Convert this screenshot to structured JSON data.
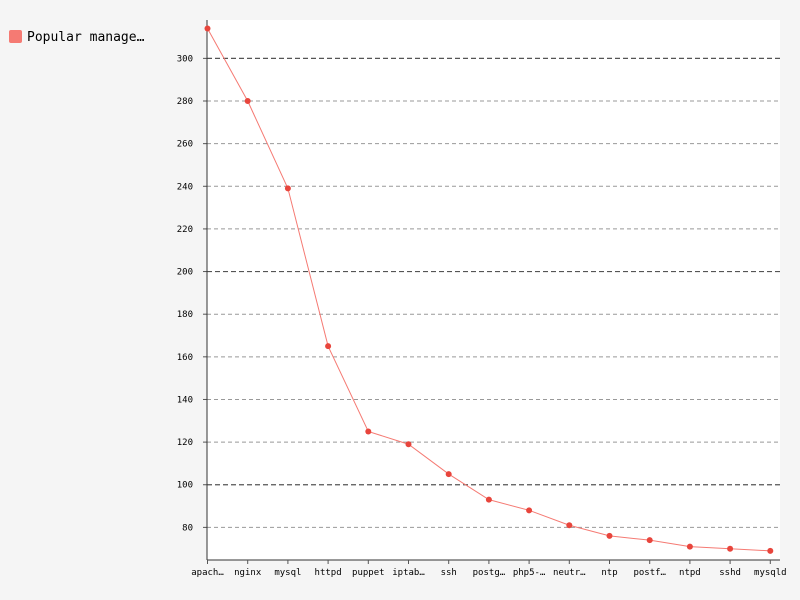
{
  "legend": {
    "entries": [
      {
        "label": "Popular manage…",
        "color": "#f57a73"
      }
    ]
  },
  "chart_data": {
    "type": "line",
    "categories": [
      "apach…",
      "nginx",
      "mysql",
      "httpd",
      "puppet",
      "iptab…",
      "ssh",
      "postg…",
      "php5-…",
      "neutr…",
      "ntp",
      "postf…",
      "ntpd",
      "sshd",
      "mysqld"
    ],
    "series": [
      {
        "name": "Popular manage…",
        "values": [
          314,
          280,
          239,
          165,
          125,
          119,
          105,
          93,
          88,
          81,
          76,
          74,
          71,
          70,
          69
        ],
        "color": "#e8453c",
        "line_color": "#f57a73"
      }
    ],
    "y_ticks": [
      80,
      100,
      120,
      140,
      160,
      180,
      200,
      220,
      240,
      260,
      280,
      300
    ],
    "y_major_ticks": [
      100,
      200,
      300
    ],
    "ylim": [
      64.7,
      318
    ],
    "grid": true,
    "legend_position": "top-left",
    "background_color": "#ffffff"
  }
}
